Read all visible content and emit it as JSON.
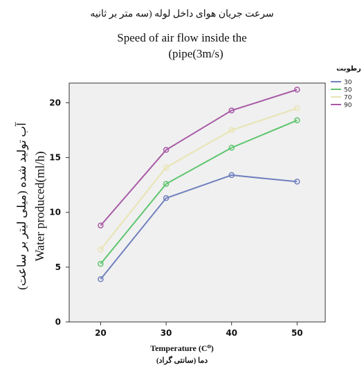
{
  "title": {
    "fa": "سرعت جریان هوای داخل لوله (سه متر بر ثانیه",
    "en_line1": "Speed of air flow inside the",
    "en_line2": "(pipe(3m/s)"
  },
  "axes": {
    "y_label_en": "Water produced(ml/h)",
    "y_label_fa": "آب تولید شده (میلی لیتر بر ساعت)",
    "x_label_en": "Temperature (C⁰)",
    "x_label_fa": "دما (سانتی گراد)"
  },
  "legend": {
    "title": "رطوبت"
  },
  "chart_data": {
    "type": "line",
    "x": [
      20,
      30,
      40,
      50
    ],
    "series": [
      {
        "name": "30",
        "color": "#6f7fbd",
        "values": [
          3.9,
          11.3,
          13.4,
          12.8
        ]
      },
      {
        "name": "50",
        "color": "#5dc56d",
        "values": [
          5.3,
          12.6,
          15.9,
          18.4
        ]
      },
      {
        "name": "70",
        "color": "#e8e4b2",
        "values": [
          6.6,
          14.1,
          17.5,
          19.5
        ]
      },
      {
        "name": "90",
        "color": "#a85aa6",
        "values": [
          8.8,
          15.7,
          19.3,
          21.2
        ]
      }
    ],
    "y_ticks": [
      0,
      5,
      10,
      15,
      20
    ],
    "x_ticks": [
      20,
      30,
      40,
      50
    ],
    "ylim": [
      0,
      21.8
    ],
    "xlim": [
      15.2,
      54.3
    ],
    "grid": false,
    "plot_background": "#f0f0f0",
    "legend_position": "top-right"
  }
}
